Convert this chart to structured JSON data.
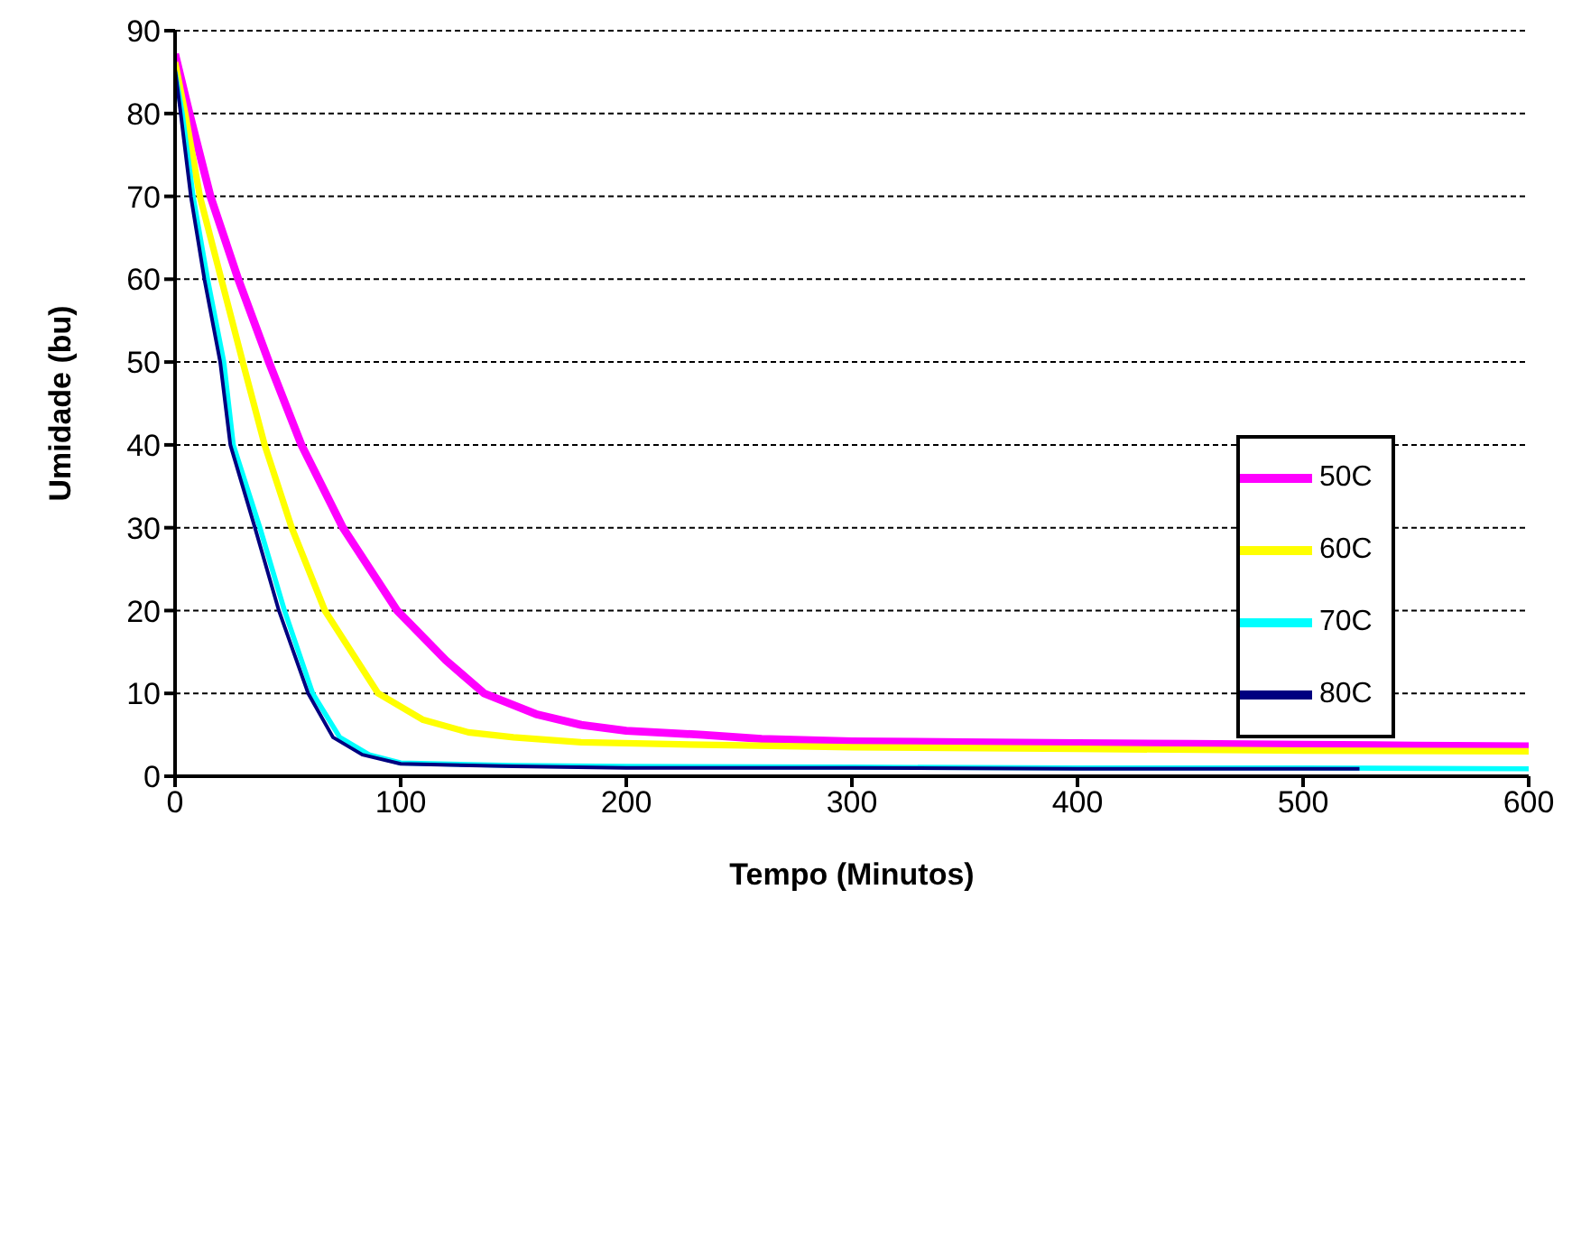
{
  "chart_data": {
    "type": "line",
    "xlabel": "Tempo (Minutos)",
    "ylabel": "Umidade (bu)",
    "xlim": [
      0,
      600
    ],
    "xticks": [
      0,
      100,
      200,
      300,
      400,
      500,
      600
    ],
    "ylim": [
      0,
      90
    ],
    "yticks": [
      0,
      10,
      20,
      30,
      40,
      50,
      60,
      70,
      80,
      90
    ],
    "grid": "y",
    "legend": "right",
    "marker": "none",
    "line_style": "solid",
    "series": [
      {
        "name": "50C",
        "color": "#ff00ff",
        "x": [
          0,
          6.4,
          15.7,
          28,
          41.6,
          56,
          74.4,
          98.4,
          120,
          137,
          160,
          180,
          200,
          234,
          260,
          300,
          350,
          400,
          450,
          500,
          550,
          600
        ],
        "values": [
          87.2,
          80,
          70,
          60,
          50,
          40,
          30,
          20,
          14,
          10,
          7.5,
          6.2,
          5.5,
          5,
          4.5,
          4.2,
          4.1,
          4,
          3.9,
          3.8,
          3.7,
          3.6
        ]
      },
      {
        "name": "60C",
        "color": "#ffff00",
        "x": [
          0,
          4.5,
          11,
          20.5,
          30,
          39.7,
          51.7,
          66.4,
          90,
          110,
          130,
          150,
          180,
          234,
          300,
          400,
          500,
          600
        ],
        "values": [
          86.2,
          80,
          70,
          60,
          50,
          40,
          30,
          20,
          10,
          6.8,
          5.3,
          4.7,
          4.1,
          3.8,
          3.5,
          3.3,
          3.1,
          3
        ]
      },
      {
        "name": "70C",
        "color": "#00ffff",
        "x": [
          0,
          3.2,
          8,
          14.4,
          21.6,
          25.8,
          37.6,
          48.5,
          61,
          73,
          86,
          100,
          150,
          200,
          300,
          400,
          500,
          600
        ],
        "values": [
          85,
          80,
          70,
          60,
          50,
          40,
          30,
          20,
          10,
          4.7,
          2.6,
          1.6,
          1.3,
          1.2,
          1.1,
          1,
          1,
          0.9
        ]
      },
      {
        "name": "80C",
        "color": "#000080",
        "x": [
          0,
          2.5,
          7,
          13,
          20,
          24.5,
          35.4,
          46,
          59,
          70,
          83,
          100,
          150,
          200,
          300,
          400,
          525
        ],
        "values": [
          85.4,
          80,
          70,
          60,
          50,
          40,
          30,
          20,
          10,
          4.7,
          2.6,
          1.5,
          1.2,
          1,
          1,
          0.9,
          0.9
        ]
      }
    ]
  }
}
